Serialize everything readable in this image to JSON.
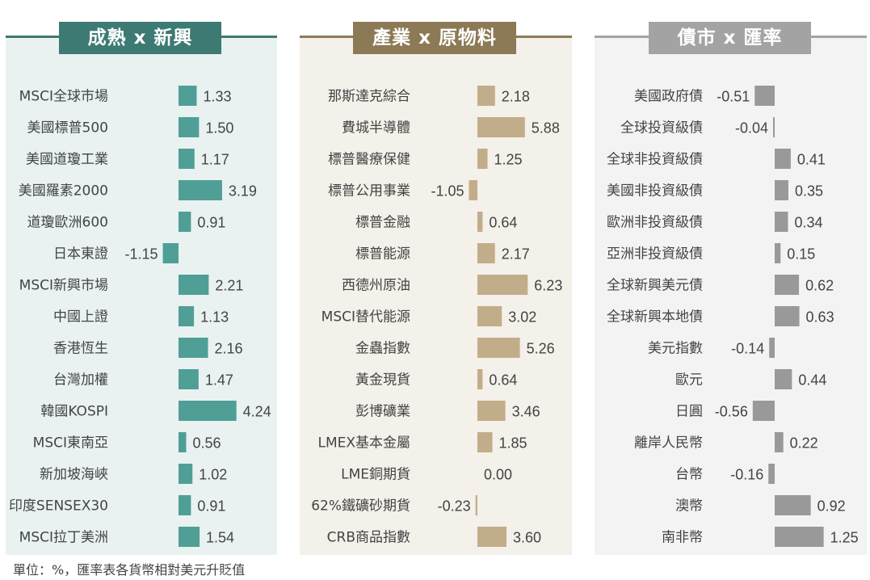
{
  "unit_note": "單位：%，匯率表各貨幣相對美元升貶值",
  "chart_data": [
    {
      "type": "bar",
      "title": "成熟 x 新興",
      "color": "#4f9f96",
      "categories": [
        "MSCI全球市場",
        "美國標普500",
        "美國道瓊工業",
        "美國羅素2000",
        "道瓊歐洲600",
        "日本東證",
        "MSCI新興市場",
        "中國上證",
        "香港恆生",
        "台灣加權",
        "韓國KOSPI",
        "MSCI東南亞",
        "新加坡海峽",
        "印度SENSEX30",
        "MSCI拉丁美洲"
      ],
      "values": [
        1.33,
        1.5,
        1.17,
        3.19,
        0.91,
        -1.15,
        2.21,
        1.13,
        2.16,
        1.47,
        4.24,
        0.56,
        1.02,
        0.91,
        1.54
      ]
    },
    {
      "type": "bar",
      "title": "產業 x 原物料",
      "color": "#c2ad8a",
      "categories": [
        "那斯達克綜合",
        "費城半導體",
        "標普醫療保健",
        "標普公用事業",
        "標普金融",
        "標普能源",
        "西德州原油",
        "MSCI替代能源",
        "金蟲指數",
        "黃金現貨",
        "彭博礦業",
        "LMEX基本金屬",
        "LME銅期貨",
        "62%鐵礦砂期貨",
        "CRB商品指數"
      ],
      "values": [
        2.18,
        5.88,
        1.25,
        -1.05,
        0.64,
        2.17,
        6.23,
        3.02,
        5.26,
        0.64,
        3.46,
        1.85,
        0.0,
        -0.23,
        3.6
      ]
    },
    {
      "type": "bar",
      "title": "債市 x 匯率",
      "color": "#999999",
      "categories": [
        "美國政府債",
        "全球投資級債",
        "全球非投資級債",
        "美國非投資級債",
        "歐洲非投資級債",
        "亞洲非投資級債",
        "全球新興美元債",
        "全球新興本地債",
        "美元指數",
        "歐元",
        "日圓",
        "離岸人民幣",
        "台幣",
        "澳幣",
        "南非幣"
      ],
      "values": [
        -0.51,
        -0.04,
        0.41,
        0.35,
        0.34,
        0.15,
        0.62,
        0.63,
        -0.14,
        0.44,
        -0.56,
        0.22,
        -0.16,
        0.92,
        1.25
      ]
    }
  ]
}
